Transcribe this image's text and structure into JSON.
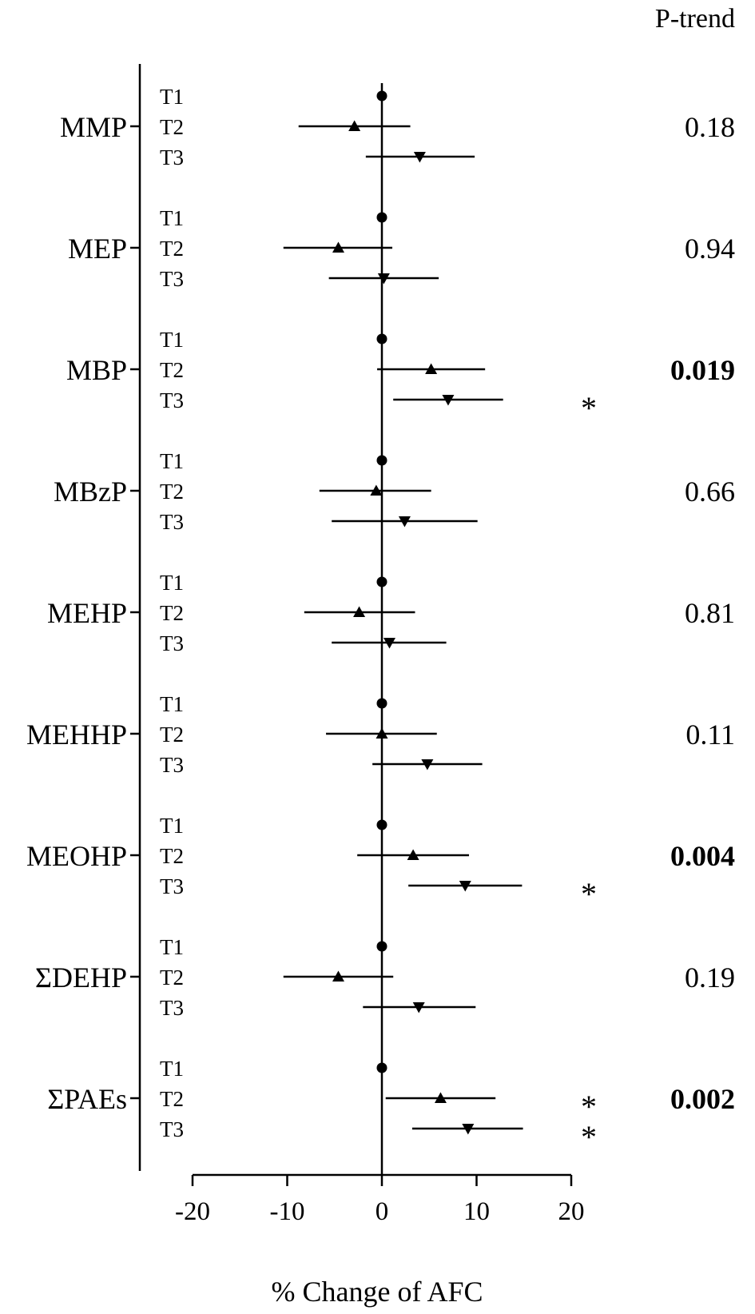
{
  "chart_data": {
    "type": "forest",
    "title": "",
    "xlabel": "% Change of AFC",
    "ylabel": "",
    "xlim": [
      -20,
      20
    ],
    "xticks": [
      "-20",
      "-10",
      "0",
      "10",
      "20"
    ],
    "xtick_values": [
      -20,
      -10,
      0,
      10,
      20
    ],
    "reference_line": 0,
    "grid": false,
    "ptrend_header": "P-trend",
    "markers": {
      "T1": "circle",
      "T2": "triangle-up",
      "T3": "triangle-down"
    },
    "significance_mark": "*",
    "groups": [
      {
        "label": "MMP",
        "p_trend": "0.18",
        "p_trend_bold": false,
        "rows": [
          {
            "tertile": "T1",
            "estimate": 0,
            "ci_low": null,
            "ci_high": null,
            "star": false
          },
          {
            "tertile": "T2",
            "estimate": -2.9,
            "ci_low": -8.8,
            "ci_high": 3.0,
            "star": false
          },
          {
            "tertile": "T3",
            "estimate": 4.0,
            "ci_low": -1.7,
            "ci_high": 9.8,
            "star": false
          }
        ]
      },
      {
        "label": "MEP",
        "p_trend": "0.94",
        "p_trend_bold": false,
        "rows": [
          {
            "tertile": "T1",
            "estimate": 0,
            "ci_low": null,
            "ci_high": null,
            "star": false
          },
          {
            "tertile": "T2",
            "estimate": -4.6,
            "ci_low": -10.4,
            "ci_high": 1.1,
            "star": false
          },
          {
            "tertile": "T3",
            "estimate": 0.2,
            "ci_low": -5.6,
            "ci_high": 6.0,
            "star": false
          }
        ]
      },
      {
        "label": "MBP",
        "p_trend": "0.019",
        "p_trend_bold": true,
        "rows": [
          {
            "tertile": "T1",
            "estimate": 0,
            "ci_low": null,
            "ci_high": null,
            "star": false
          },
          {
            "tertile": "T2",
            "estimate": 5.2,
            "ci_low": -0.5,
            "ci_high": 10.9,
            "star": false
          },
          {
            "tertile": "T3",
            "estimate": 7.0,
            "ci_low": 1.2,
            "ci_high": 12.8,
            "star": true
          }
        ]
      },
      {
        "label": "MBzP",
        "p_trend": "0.66",
        "p_trend_bold": false,
        "rows": [
          {
            "tertile": "T1",
            "estimate": 0,
            "ci_low": null,
            "ci_high": null,
            "star": false
          },
          {
            "tertile": "T2",
            "estimate": -0.6,
            "ci_low": -6.6,
            "ci_high": 5.2,
            "star": false
          },
          {
            "tertile": "T3",
            "estimate": 2.4,
            "ci_low": -5.3,
            "ci_high": 10.1,
            "star": false
          }
        ]
      },
      {
        "label": "MEHP",
        "p_trend": "0.81",
        "p_trend_bold": false,
        "rows": [
          {
            "tertile": "T1",
            "estimate": 0,
            "ci_low": null,
            "ci_high": null,
            "star": false
          },
          {
            "tertile": "T2",
            "estimate": -2.4,
            "ci_low": -8.2,
            "ci_high": 3.5,
            "star": false
          },
          {
            "tertile": "T3",
            "estimate": 0.8,
            "ci_low": -5.3,
            "ci_high": 6.8,
            "star": false
          }
        ]
      },
      {
        "label": "MEHHP",
        "p_trend": "0.11",
        "p_trend_bold": false,
        "rows": [
          {
            "tertile": "T1",
            "estimate": 0,
            "ci_low": null,
            "ci_high": null,
            "star": false
          },
          {
            "tertile": "T2",
            "estimate": 0.0,
            "ci_low": -5.9,
            "ci_high": 5.8,
            "star": false
          },
          {
            "tertile": "T3",
            "estimate": 4.8,
            "ci_low": -1.0,
            "ci_high": 10.6,
            "star": false
          }
        ]
      },
      {
        "label": "MEOHP",
        "p_trend": "0.004",
        "p_trend_bold": true,
        "rows": [
          {
            "tertile": "T1",
            "estimate": 0,
            "ci_low": null,
            "ci_high": null,
            "star": false
          },
          {
            "tertile": "T2",
            "estimate": 3.3,
            "ci_low": -2.6,
            "ci_high": 9.2,
            "star": false
          },
          {
            "tertile": "T3",
            "estimate": 8.8,
            "ci_low": 2.8,
            "ci_high": 14.8,
            "star": true
          }
        ]
      },
      {
        "label": "ΣDEHP",
        "p_trend": "0.19",
        "p_trend_bold": false,
        "rows": [
          {
            "tertile": "T1",
            "estimate": 0,
            "ci_low": null,
            "ci_high": null,
            "star": false
          },
          {
            "tertile": "T2",
            "estimate": -4.6,
            "ci_low": -10.4,
            "ci_high": 1.2,
            "star": false
          },
          {
            "tertile": "T3",
            "estimate": 3.9,
            "ci_low": -2.0,
            "ci_high": 9.9,
            "star": false
          }
        ]
      },
      {
        "label": "ΣPAEs",
        "p_trend": "0.002",
        "p_trend_bold": true,
        "rows": [
          {
            "tertile": "T1",
            "estimate": 0,
            "ci_low": null,
            "ci_high": null,
            "star": false
          },
          {
            "tertile": "T2",
            "estimate": 6.2,
            "ci_low": 0.4,
            "ci_high": 12.0,
            "star": true
          },
          {
            "tertile": "T3",
            "estimate": 9.1,
            "ci_low": 3.2,
            "ci_high": 14.9,
            "star": true
          }
        ]
      }
    ]
  }
}
